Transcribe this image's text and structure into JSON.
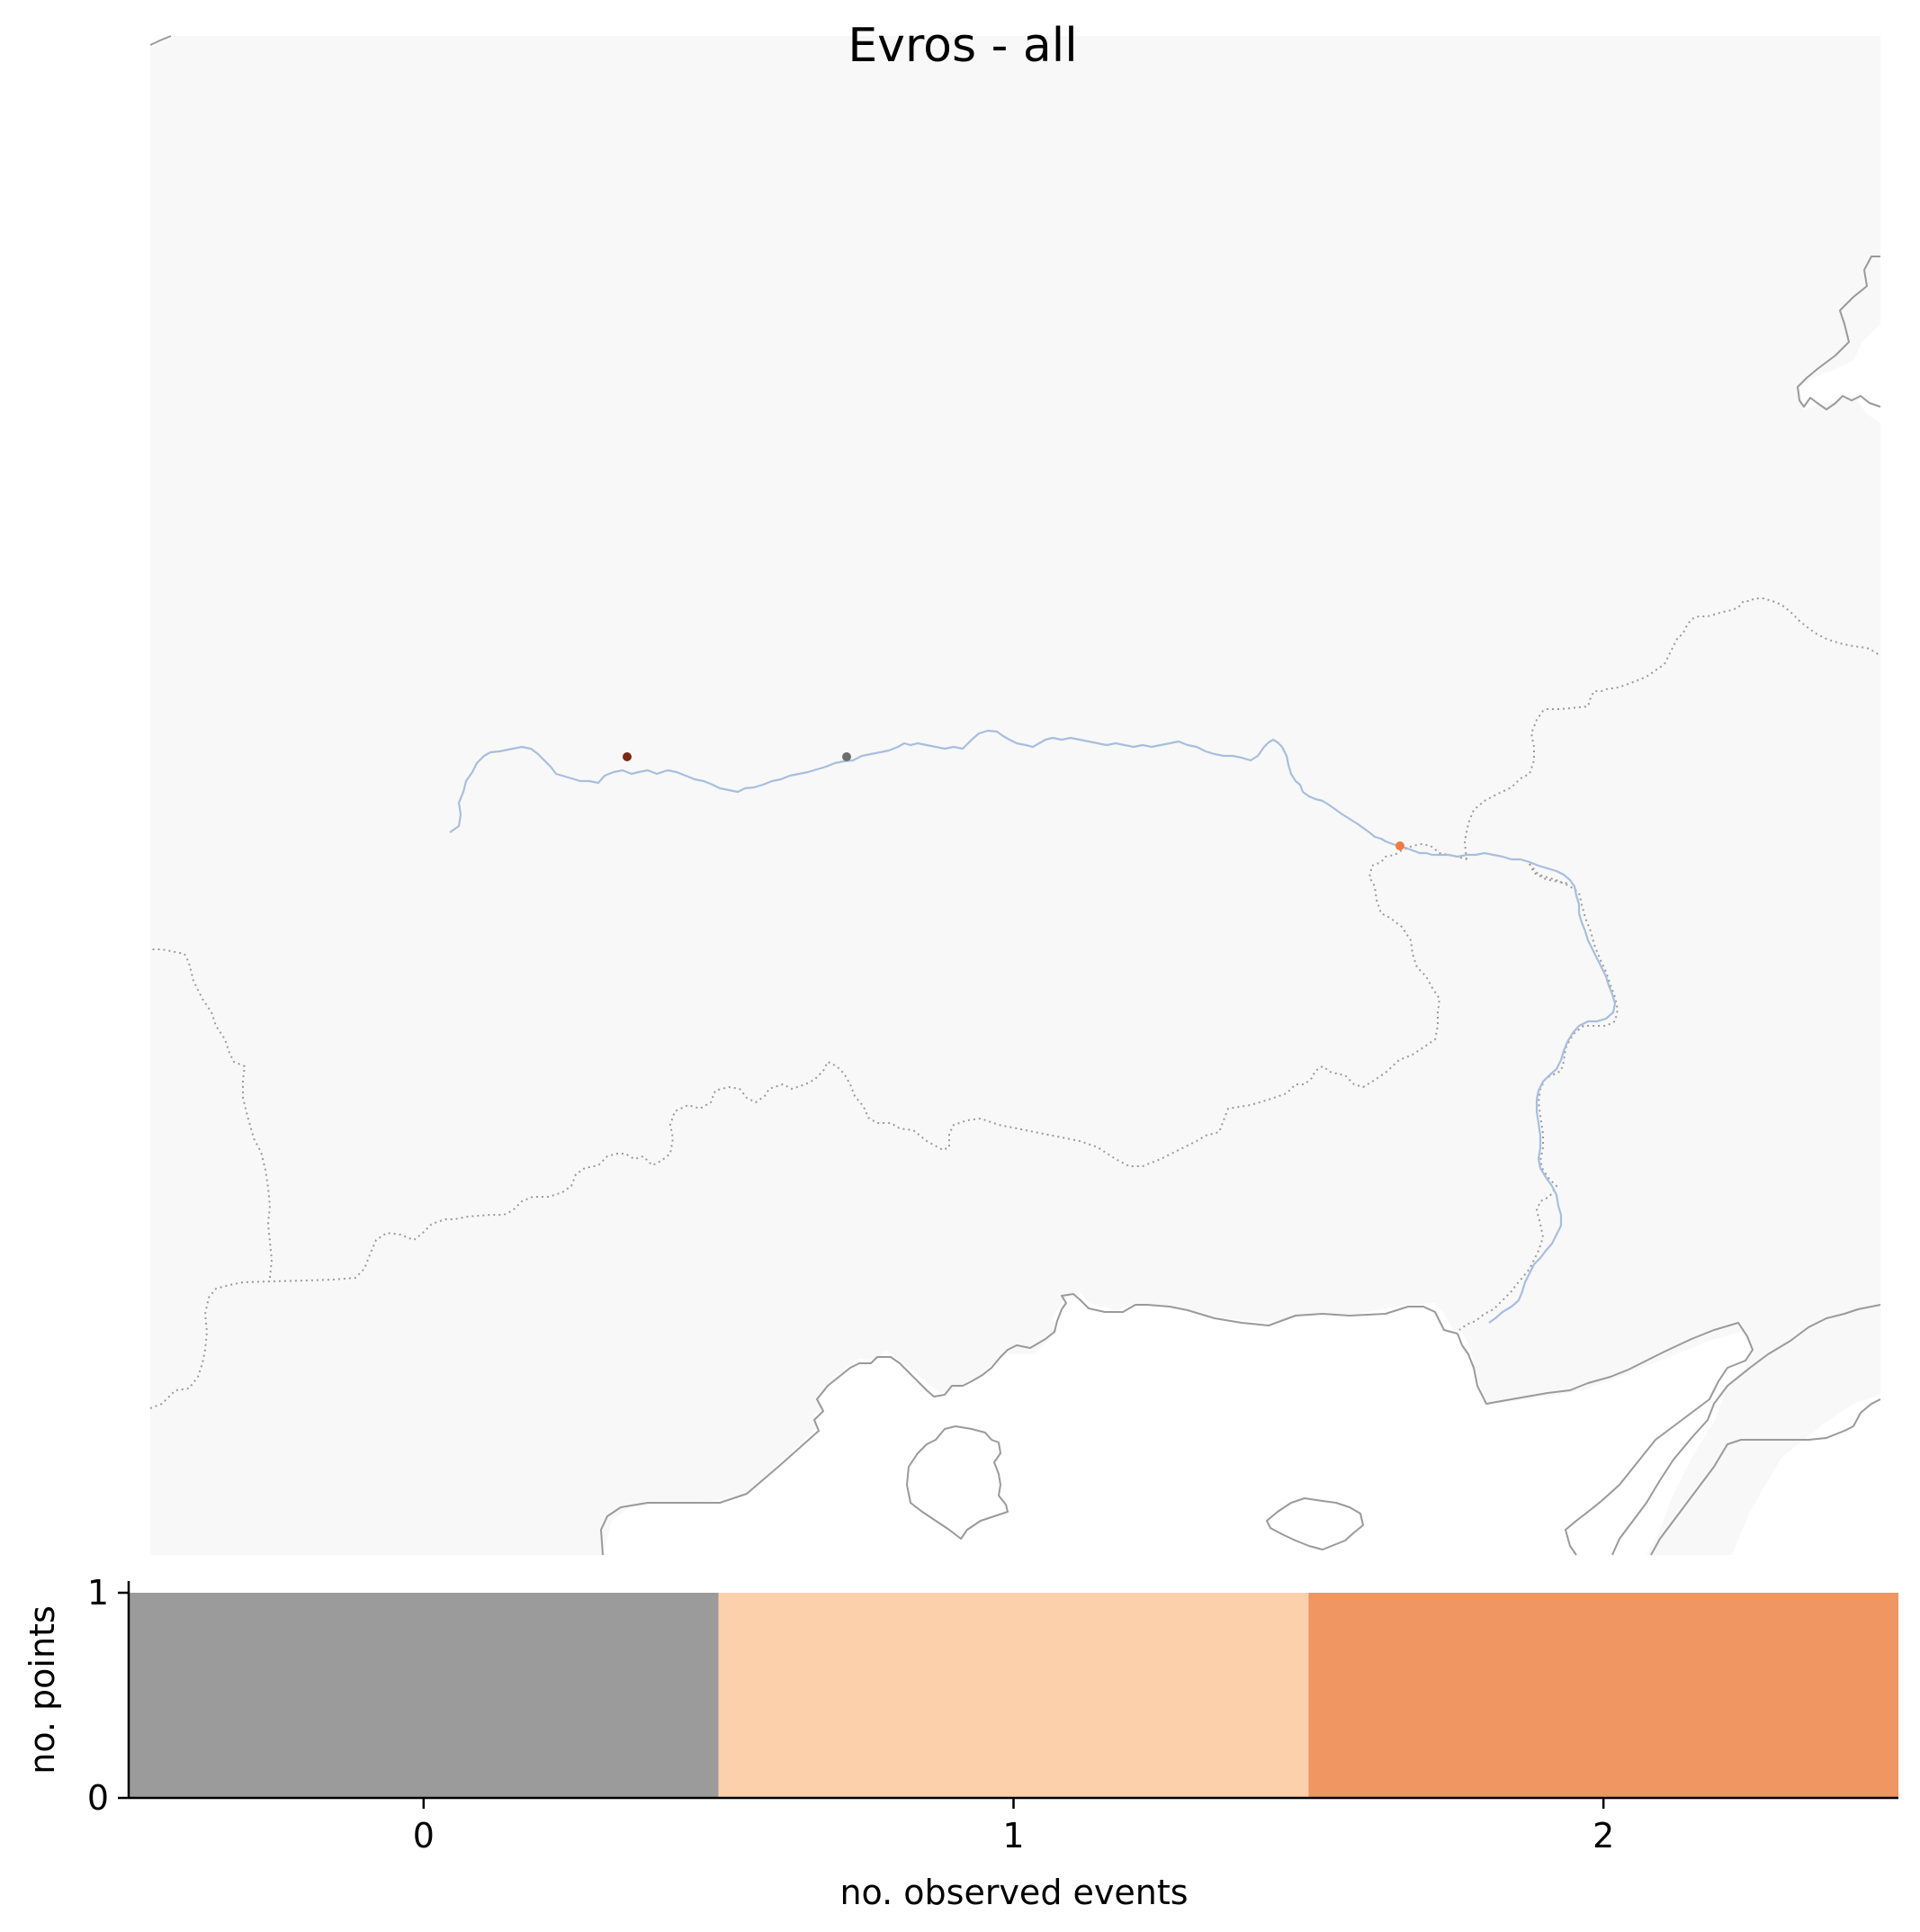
{
  "map": {
    "title": "Evros - all",
    "land_color": "#f8f8f8",
    "sea_color": "#ffffff",
    "river_color": "#a8bedf",
    "line_color": "#9a9a9a",
    "points": [
      {
        "name": "point-dark-red",
        "color": "#7b2a12"
      },
      {
        "name": "point-grey",
        "color": "#6e6e6e"
      },
      {
        "name": "point-orange",
        "color": "#ee7c44"
      }
    ]
  },
  "chart_data": {
    "type": "bar",
    "categories": [
      "0",
      "1",
      "2"
    ],
    "values": [
      1,
      1,
      1
    ],
    "colors": [
      "#9b9b9b",
      "#fbd0aa",
      "#ef9662"
    ],
    "xlabel": "no. observed events",
    "ylabel": "no. points",
    "yticks": [
      "0",
      "1"
    ],
    "ylim": [
      0,
      1
    ],
    "xlim": [
      -0.5,
      2.5
    ],
    "grid": false
  }
}
